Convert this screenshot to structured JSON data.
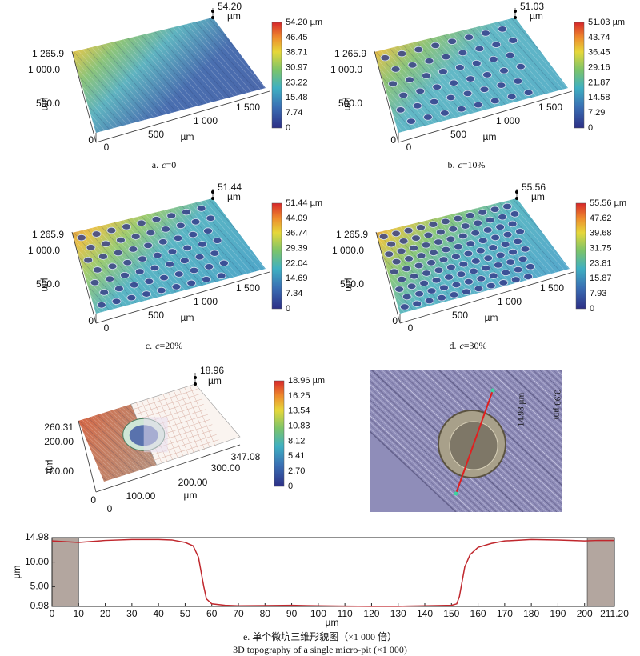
{
  "surface_panels": [
    {
      "peak": "54.20",
      "peak_unit": "µm",
      "y_labels": [
        "1 265.9",
        "1 000.0",
        "500.0",
        "0"
      ],
      "y_unit": "µm",
      "x_labels": [
        "0",
        "500",
        "1 000",
        "1 500"
      ],
      "x_unit": "µm",
      "colorbar": [
        "54.20 µm",
        "46.45",
        "38.71",
        "30.97",
        "23.22",
        "15.48",
        "7.74",
        "0"
      ],
      "caption": {
        "label": "a.",
        "var": "c",
        "rest": "=0"
      }
    },
    {
      "peak": "51.03",
      "peak_unit": "µm",
      "y_labels": [
        "1 265.9",
        "1 000.0",
        "500.0",
        "0"
      ],
      "y_unit": "µm",
      "x_labels": [
        "0",
        "500",
        "1 000",
        "1 500"
      ],
      "x_unit": "µm",
      "colorbar": [
        "51.03 µm",
        "43.74",
        "36.45",
        "29.16",
        "21.87",
        "14.58",
        "7.29",
        "0"
      ],
      "caption": {
        "label": "b.",
        "var": "c",
        "rest": "=10%"
      }
    },
    {
      "peak": "51.44",
      "peak_unit": "µm",
      "y_labels": [
        "1 265.9",
        "1 000.0",
        "500.0",
        "0"
      ],
      "y_unit": "µm",
      "x_labels": [
        "0",
        "500",
        "1 000",
        "1 500"
      ],
      "x_unit": "µm",
      "colorbar": [
        "51.44 µm",
        "44.09",
        "36.74",
        "29.39",
        "22.04",
        "14.69",
        "7.34",
        "0"
      ],
      "caption": {
        "label": "c.",
        "var": "c",
        "rest": "=20%"
      }
    },
    {
      "peak": "55.56",
      "peak_unit": "µm",
      "y_labels": [
        "1 265.9",
        "1 000.0",
        "500.0",
        "0"
      ],
      "y_unit": "µm",
      "x_labels": [
        "0",
        "500",
        "1 000",
        "1 500"
      ],
      "x_unit": "µm",
      "colorbar": [
        "55.56 µm",
        "47.62",
        "39.68",
        "31.75",
        "23.81",
        "15.87",
        "7.93",
        "0"
      ],
      "caption": {
        "label": "d.",
        "var": "c",
        "rest": "=30%"
      }
    }
  ],
  "pit_panel": {
    "peak": "18.96",
    "peak_unit": "µm",
    "y_labels": [
      "260.31",
      "200.00",
      "100.00",
      "0"
    ],
    "y_unit": "µm",
    "x_labels": [
      "0",
      "100.00",
      "200.00",
      "300.00",
      "347.08"
    ],
    "x_unit": "µm",
    "colorbar": [
      "18.96 µm",
      "16.25",
      "13.54",
      "10.83",
      "8.12",
      "5.41",
      "2.70",
      "0"
    ]
  },
  "micrograph": {
    "labels": [
      "14.98 µm",
      "3.98 µm"
    ]
  },
  "profile": {
    "type": "line",
    "x_label": "µm",
    "y_label": "µm",
    "x": [
      0,
      10,
      20,
      30,
      40,
      45,
      50,
      53,
      55,
      56,
      57,
      58,
      60,
      65,
      70,
      80,
      90,
      100,
      110,
      120,
      130,
      140,
      150,
      152,
      153,
      154,
      155,
      157,
      160,
      165,
      170,
      180,
      190,
      200,
      205,
      211.2
    ],
    "series": [
      {
        "color": "#c0272d",
        "values": [
          14.3,
          14.0,
          14.4,
          14.6,
          14.6,
          14.5,
          14.0,
          13.3,
          11.0,
          8.0,
          5.0,
          2.5,
          1.5,
          1.2,
          1.1,
          1.15,
          1.2,
          1.1,
          1.05,
          1.0,
          1.0,
          1.1,
          1.2,
          1.5,
          3.0,
          6.0,
          9.0,
          11.5,
          13.0,
          13.8,
          14.3,
          14.6,
          14.5,
          14.3,
          14.4,
          14.4
        ]
      }
    ],
    "shaded_ranges": [
      [
        0,
        10
      ],
      [
        201,
        211.2
      ]
    ],
    "shade_color": "#b3a69f",
    "xlim": [
      0,
      211.2
    ],
    "ylim": [
      0.98,
      14.98
    ],
    "xticks": [
      0,
      10,
      20,
      30,
      40,
      50,
      60,
      70,
      80,
      90,
      100,
      110,
      120,
      130,
      140,
      150,
      160,
      170,
      180,
      190,
      200,
      {
        "value": 211.2,
        "label": "211.20"
      }
    ],
    "yticks": [
      {
        "value": 0.98,
        "label": "0.98"
      },
      {
        "value": 5,
        "label": "5.00"
      },
      {
        "value": 10,
        "label": "10.00"
      },
      {
        "value": 14.98,
        "label": "14.98"
      }
    ],
    "caption_cn": "e. 单个微坑三维形貌图（×1 000 倍）",
    "caption_en": "3D topography of a single micro-pit (×1 000)"
  }
}
